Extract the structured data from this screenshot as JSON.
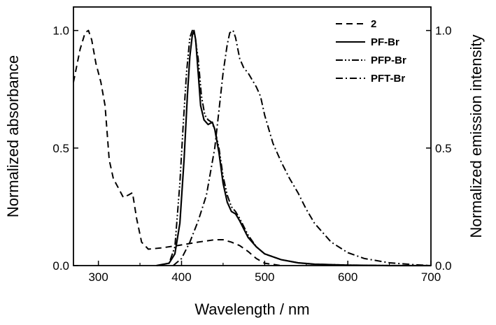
{
  "chart_data": {
    "type": "line",
    "title": "",
    "xlabel": "Wavelength / nm",
    "ylabel": "Normalized absorbance",
    "y2label": "Normalized emission intensity",
    "xlim": [
      270,
      700
    ],
    "ylim": [
      0,
      1.1
    ],
    "y2lim": [
      0,
      1.1
    ],
    "xticks": [
      300,
      400,
      500,
      600,
      700
    ],
    "yticks": [
      0.0,
      0.5,
      1.0
    ],
    "ytick_labels": [
      "0.0",
      "0.5",
      "1.0"
    ],
    "y2ticks": [
      0.0,
      0.5,
      1.0
    ],
    "y2tick_labels": [
      "0.0",
      "0.5",
      "1.0"
    ],
    "grid": false,
    "legend_position": "top-right",
    "series": [
      {
        "name": "2",
        "dash": "dashed",
        "x": [
          270,
          278,
          284,
          288,
          292,
          297,
          303,
          308,
          313,
          318,
          324,
          330,
          336,
          341,
          346,
          352,
          360,
          375,
          395,
          420,
          440,
          450,
          460,
          470,
          480,
          490,
          500,
          520
        ],
        "y": [
          0.78,
          0.92,
          0.99,
          1.0,
          0.96,
          0.86,
          0.78,
          0.68,
          0.45,
          0.37,
          0.33,
          0.29,
          0.3,
          0.31,
          0.2,
          0.1,
          0.07,
          0.075,
          0.085,
          0.1,
          0.11,
          0.11,
          0.1,
          0.085,
          0.06,
          0.03,
          0.01,
          0.0
        ]
      },
      {
        "name": "PF-Br",
        "dash": "solid",
        "x": [
          370,
          385,
          392,
          398,
          403,
          407,
          410,
          413,
          415,
          417,
          420,
          423,
          427,
          432,
          437,
          440,
          445,
          450,
          455,
          460,
          465,
          470,
          480,
          490,
          500,
          520,
          540,
          560,
          600,
          650,
          700
        ],
        "y": [
          0.0,
          0.01,
          0.05,
          0.18,
          0.45,
          0.72,
          0.89,
          0.98,
          1.0,
          0.96,
          0.82,
          0.68,
          0.62,
          0.6,
          0.61,
          0.58,
          0.48,
          0.35,
          0.27,
          0.23,
          0.22,
          0.19,
          0.12,
          0.08,
          0.05,
          0.025,
          0.012,
          0.006,
          0.002,
          0.0,
          0.0
        ]
      },
      {
        "name": "PFP-Br",
        "dash": "dash-dot-dot",
        "x": [
          370,
          385,
          392,
          398,
          402,
          406,
          410,
          413,
          416,
          420,
          424,
          428,
          432,
          436,
          440,
          445,
          450,
          455,
          460,
          465,
          470,
          480,
          490,
          500,
          520,
          540,
          560,
          600,
          650,
          700
        ],
        "y": [
          0.0,
          0.01,
          0.08,
          0.35,
          0.6,
          0.82,
          0.97,
          1.0,
          0.98,
          0.88,
          0.72,
          0.64,
          0.62,
          0.61,
          0.58,
          0.5,
          0.38,
          0.3,
          0.25,
          0.23,
          0.2,
          0.13,
          0.08,
          0.05,
          0.025,
          0.012,
          0.006,
          0.002,
          0.0,
          0.0
        ]
      },
      {
        "name": "PFT-Br",
        "dash": "dash-dot",
        "x": [
          390,
          400,
          410,
          420,
          430,
          440,
          445,
          450,
          455,
          458,
          462,
          465,
          470,
          475,
          480,
          485,
          490,
          495,
          500,
          510,
          520,
          530,
          540,
          550,
          560,
          580,
          600,
          620,
          650,
          680,
          700
        ],
        "y": [
          0.0,
          0.03,
          0.1,
          0.19,
          0.3,
          0.5,
          0.66,
          0.82,
          0.94,
          0.99,
          1.0,
          0.97,
          0.88,
          0.84,
          0.82,
          0.79,
          0.76,
          0.72,
          0.64,
          0.52,
          0.44,
          0.37,
          0.31,
          0.24,
          0.18,
          0.1,
          0.055,
          0.03,
          0.012,
          0.004,
          0.0
        ]
      }
    ]
  }
}
